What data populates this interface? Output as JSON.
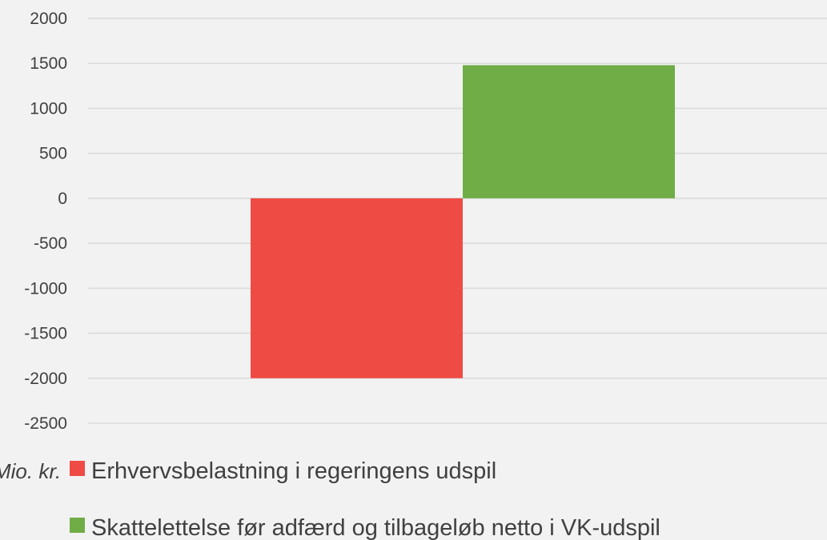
{
  "chart_data": {
    "type": "bar",
    "unit_label": "Mio. kr.",
    "ylim": [
      -2500,
      2000
    ],
    "yticks": [
      2000,
      1500,
      1000,
      500,
      0,
      -500,
      -1000,
      -1500,
      -2000,
      -2500
    ],
    "grid": true,
    "legend_position": "bottom",
    "series": [
      {
        "name": "Erhvervsbelastning i regeringens udspil",
        "value": -2000,
        "color": "#ef4b45"
      },
      {
        "name": "Skattelettelse før adfærd og tilbageløb netto i VK-udspil",
        "value": 1480,
        "color": "#70ad47"
      }
    ]
  }
}
